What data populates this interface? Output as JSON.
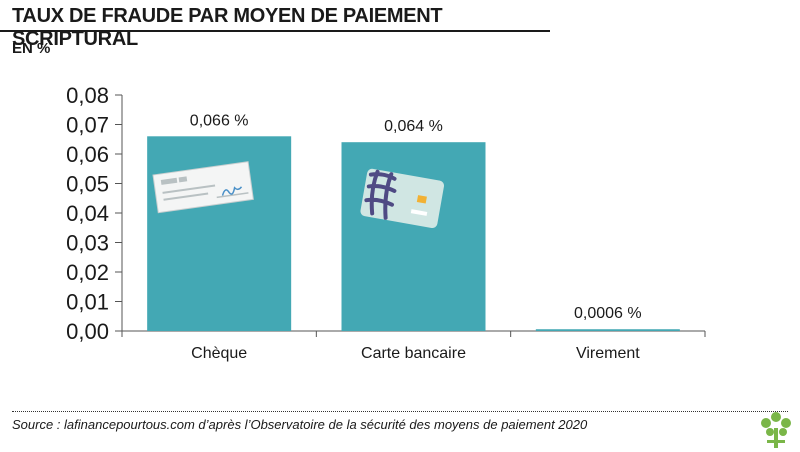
{
  "header": {
    "title": "TAUX DE FRAUDE PAR MOYEN DE PAIEMENT SCRIPTURAL",
    "unit": "EN %"
  },
  "chart_data": {
    "type": "bar",
    "title": "TAUX DE FRAUDE PAR MOYEN DE PAIEMENT SCRIPTURAL",
    "ylabel": "EN %",
    "xlabel": "",
    "categories": [
      "Chèque",
      "Carte bancaire",
      "Virement"
    ],
    "values": [
      0.066,
      0.064,
      0.0006
    ],
    "data_labels": [
      "0,066 %",
      "0,064 %",
      "0,0006 %"
    ],
    "ylim": [
      0,
      0.08
    ],
    "yticks": [
      "0,00",
      "0,01",
      "0,02",
      "0,03",
      "0,04",
      "0,05",
      "0,06",
      "0,07",
      "0,08"
    ],
    "grid": false,
    "legend": "none",
    "icons": [
      "check-icon",
      "bank-card-icon"
    ],
    "colors": {
      "bar": "#43a8b4",
      "axis": "#555555",
      "text": "#1a1a1a",
      "logo": "#7ab648"
    }
  },
  "footer": {
    "source": "Source : lafinancepourtous.com d’après l’Observatoire de la sécurité des moyens de paiement 2020"
  }
}
